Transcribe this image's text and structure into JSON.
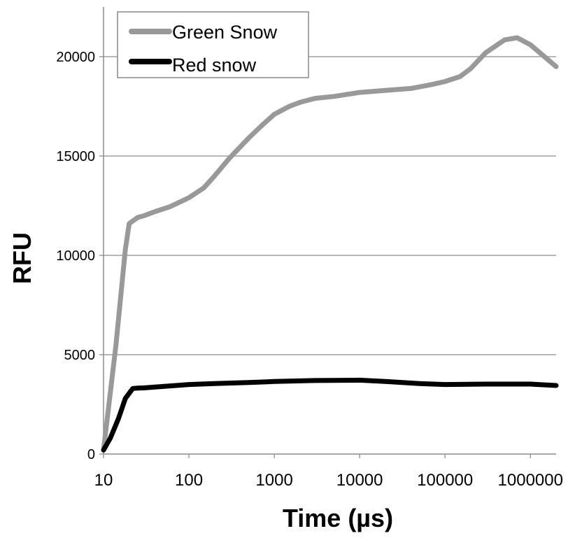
{
  "chart_data": {
    "type": "line",
    "title": "",
    "xlabel": "Time (µs)",
    "ylabel": "RFU",
    "x_scale": "log",
    "xlim": [
      10,
      2000000
    ],
    "ylim": [
      0,
      22500
    ],
    "x_ticks": [
      10,
      100,
      1000,
      10000,
      100000,
      1000000
    ],
    "x_tick_labels": [
      "10",
      "100",
      "1000",
      "10000",
      "100000",
      "1000000"
    ],
    "y_ticks": [
      0,
      5000,
      10000,
      15000,
      20000
    ],
    "y_tick_labels": [
      "0",
      "5000",
      "10000",
      "15000",
      "20000"
    ],
    "grid": "horizontal",
    "legend_position": "top-left",
    "series": [
      {
        "name": "Green Snow",
        "color": "#999999",
        "points": [
          [
            10,
            200
          ],
          [
            14,
            5500
          ],
          [
            18,
            10300
          ],
          [
            20,
            11600
          ],
          [
            25,
            11900
          ],
          [
            30,
            12000
          ],
          [
            40,
            12200
          ],
          [
            60,
            12450
          ],
          [
            100,
            12900
          ],
          [
            150,
            13400
          ],
          [
            200,
            14000
          ],
          [
            300,
            14900
          ],
          [
            500,
            15900
          ],
          [
            700,
            16500
          ],
          [
            1000,
            17100
          ],
          [
            1500,
            17500
          ],
          [
            2000,
            17700
          ],
          [
            3000,
            17900
          ],
          [
            5000,
            18000
          ],
          [
            10000,
            18200
          ],
          [
            20000,
            18300
          ],
          [
            40000,
            18400
          ],
          [
            70000,
            18600
          ],
          [
            100000,
            18750
          ],
          [
            150000,
            19000
          ],
          [
            200000,
            19400
          ],
          [
            300000,
            20200
          ],
          [
            500000,
            20850
          ],
          [
            700000,
            20950
          ],
          [
            1000000,
            20600
          ],
          [
            2000000,
            19500
          ]
        ]
      },
      {
        "name": "Red snow",
        "color": "#000000",
        "points": [
          [
            10,
            200
          ],
          [
            12,
            800
          ],
          [
            15,
            1800
          ],
          [
            18,
            2800
          ],
          [
            22,
            3300
          ],
          [
            25,
            3320
          ],
          [
            30,
            3330
          ],
          [
            50,
            3400
          ],
          [
            100,
            3500
          ],
          [
            200,
            3550
          ],
          [
            500,
            3600
          ],
          [
            1000,
            3650
          ],
          [
            3000,
            3700
          ],
          [
            10000,
            3720
          ],
          [
            20000,
            3650
          ],
          [
            50000,
            3550
          ],
          [
            100000,
            3500
          ],
          [
            300000,
            3520
          ],
          [
            1000000,
            3520
          ],
          [
            2000000,
            3450
          ]
        ]
      }
    ]
  }
}
